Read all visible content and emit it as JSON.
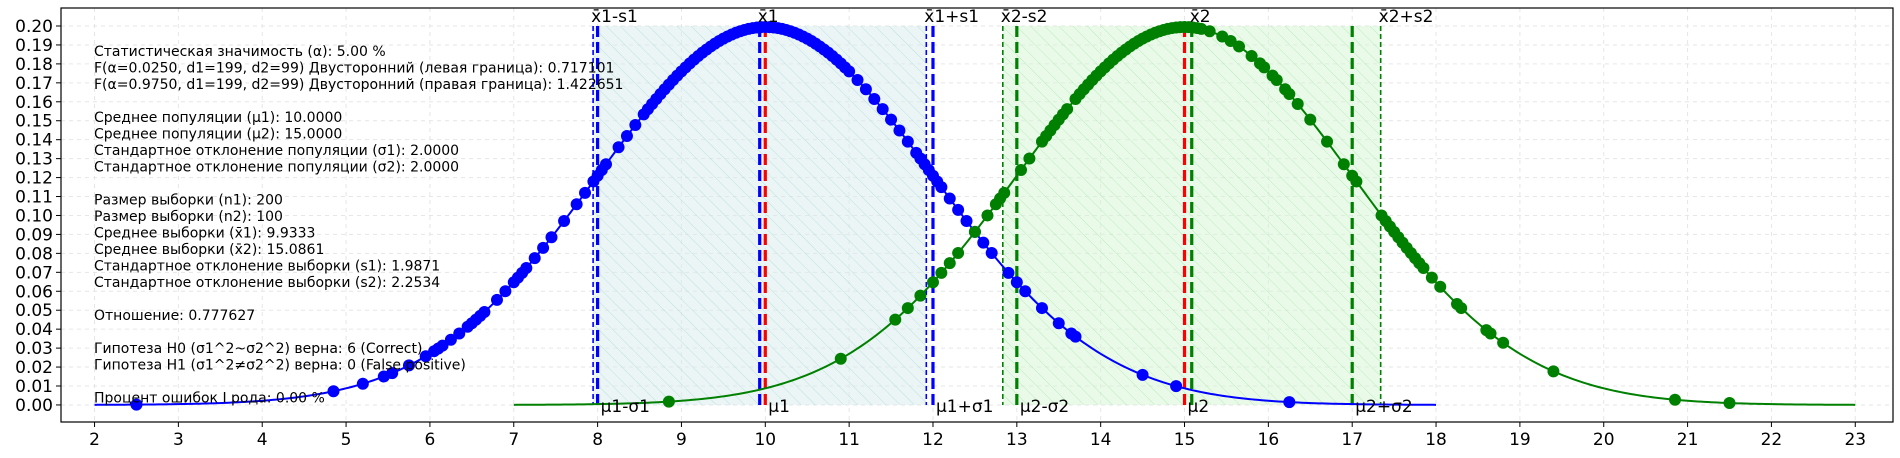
{
  "chart_data": {
    "type": "line",
    "xlim": [
      1.6,
      23.45
    ],
    "ylim": [
      -0.009,
      0.2095
    ],
    "grid": true,
    "xticks": [
      2,
      3,
      4,
      5,
      6,
      7,
      8,
      9,
      10,
      11,
      12,
      13,
      14,
      15,
      16,
      17,
      18,
      19,
      20,
      21,
      22,
      23
    ],
    "yticks": [
      0.0,
      0.01,
      0.02,
      0.03,
      0.04,
      0.05,
      0.06,
      0.07,
      0.08,
      0.09,
      0.1,
      0.11,
      0.12,
      0.13,
      0.14,
      0.15,
      0.16,
      0.17,
      0.18,
      0.19,
      0.2
    ],
    "colors": {
      "series1": "#0000ff",
      "series2": "#008000",
      "mean": "#ff0000",
      "band1": "#d8ecec",
      "band2": "#d4f5d4"
    },
    "series": [
      {
        "mu": 10.0,
        "sigma": 2.0,
        "x_range": [
          2,
          18
        ],
        "color": "#0000ff",
        "points": [
          2.5,
          4.85,
          5.2,
          5.45,
          5.55,
          5.75,
          5.95,
          6.05,
          6.1,
          6.15,
          6.25,
          6.35,
          6.45,
          6.5,
          6.55,
          6.6,
          6.65,
          6.8,
          6.9,
          7.0,
          7.05,
          7.1,
          7.15,
          7.25,
          7.35,
          7.45,
          7.6,
          7.75,
          7.85,
          7.95,
          8.0,
          8.05,
          8.1,
          8.25,
          8.35,
          8.45,
          8.55,
          8.6,
          8.65,
          8.7,
          8.75,
          8.8,
          8.85,
          8.9,
          8.95,
          9.0,
          9.05,
          9.1,
          9.15,
          9.2,
          9.25,
          9.3,
          9.35,
          9.4,
          9.45,
          9.5,
          9.55,
          9.6,
          9.65,
          9.7,
          9.75,
          9.8,
          9.85,
          9.9,
          9.95,
          10.0,
          10.05,
          10.1,
          10.15,
          10.2,
          10.25,
          10.3,
          10.35,
          10.4,
          10.45,
          10.5,
          10.55,
          10.6,
          10.65,
          10.7,
          10.75,
          10.8,
          10.85,
          10.9,
          10.95,
          11.0,
          11.1,
          11.2,
          11.3,
          11.4,
          11.5,
          11.6,
          11.7,
          11.8,
          11.85,
          11.9,
          11.95,
          12.0,
          12.05,
          12.1,
          12.2,
          12.3,
          12.4,
          12.5,
          12.6,
          12.7,
          12.9,
          13.0,
          13.1,
          13.3,
          13.5,
          13.65,
          13.7,
          14.5,
          14.9,
          16.25
        ]
      },
      {
        "mu": 15.0,
        "sigma": 2.0,
        "x_range": [
          7,
          23
        ],
        "color": "#008000",
        "points": [
          8.85,
          10.9,
          11.55,
          11.7,
          11.85,
          12.0,
          12.1,
          12.2,
          12.3,
          12.5,
          12.65,
          12.75,
          12.8,
          12.85,
          13.05,
          13.15,
          13.3,
          13.35,
          13.4,
          13.45,
          13.5,
          13.55,
          13.6,
          13.7,
          13.75,
          13.8,
          13.85,
          13.9,
          13.95,
          14.0,
          14.05,
          14.1,
          14.15,
          14.2,
          14.25,
          14.3,
          14.35,
          14.4,
          14.45,
          14.5,
          14.55,
          14.6,
          14.65,
          14.7,
          14.75,
          14.8,
          14.85,
          14.9,
          14.95,
          15.0,
          15.05,
          15.1,
          15.15,
          15.2,
          15.3,
          15.45,
          15.55,
          15.65,
          15.8,
          15.9,
          15.95,
          16.05,
          16.1,
          16.2,
          16.25,
          16.35,
          16.5,
          16.7,
          16.9,
          17.0,
          17.05,
          17.35,
          17.4,
          17.45,
          17.5,
          17.55,
          17.6,
          17.65,
          17.7,
          17.75,
          17.8,
          17.85,
          17.95,
          18.05,
          18.25,
          18.3,
          18.6,
          18.65,
          18.8,
          19.4,
          20.85,
          21.5
        ]
      }
    ],
    "vlines": [
      {
        "x": 7.9462,
        "color": "#0000ff",
        "style": "thin",
        "top_label": "x̄1-s1",
        "bottom_label": ""
      },
      {
        "x": 8.0,
        "color": "#0000ff",
        "style": "thick",
        "top_label": "",
        "bottom_label": "μ1-σ1"
      },
      {
        "x": 9.9333,
        "color": "#0000ff",
        "style": "thick",
        "top_label": "x̄1",
        "bottom_label": ""
      },
      {
        "x": 10.0,
        "color": "#ff0000",
        "style": "thick",
        "top_label": "",
        "bottom_label": "μ1"
      },
      {
        "x": 11.9204,
        "color": "#0000ff",
        "style": "thin",
        "top_label": "x̄1+s1",
        "bottom_label": ""
      },
      {
        "x": 12.0,
        "color": "#0000ff",
        "style": "thick",
        "top_label": "",
        "bottom_label": "μ1+σ1"
      },
      {
        "x": 12.8327,
        "color": "#008000",
        "style": "thin",
        "top_label": "x̄2-s2",
        "bottom_label": ""
      },
      {
        "x": 13.0,
        "color": "#008000",
        "style": "thick",
        "top_label": "",
        "bottom_label": "μ2-σ2"
      },
      {
        "x": 15.0,
        "color": "#ff0000",
        "style": "thick",
        "top_label": "",
        "bottom_label": "μ2"
      },
      {
        "x": 15.0861,
        "color": "#008000",
        "style": "thick",
        "top_label": "x̄2",
        "bottom_label": ""
      },
      {
        "x": 17.0,
        "color": "#008000",
        "style": "thick",
        "top_label": "",
        "bottom_label": "μ2+σ2"
      },
      {
        "x": 17.3395,
        "color": "#008000",
        "style": "thin",
        "top_label": "x̄2+s2",
        "bottom_label": ""
      }
    ],
    "bands": [
      {
        "x0": 7.9462,
        "x1": 11.9204,
        "color": "#d8ecec"
      },
      {
        "x0": 12.8327,
        "x1": 17.3395,
        "color": "#d4f5d4"
      }
    ],
    "annotations": [
      "Статистическая значимость (α): 5.00 %",
      "F(α=0.0250, d1=199, d2=99) Двусторонний (левая граница): 0.717101",
      "F(α=0.9750, d1=199, d2=99) Двусторонний (правая граница): 1.422651",
      "",
      "Среднее популяции (μ1): 10.0000",
      "Среднее популяции (μ2): 15.0000",
      "Стандартное отклонение популяции (σ1): 2.0000",
      "Стандартное отклонение популяции (σ2): 2.0000",
      "",
      "Размер выборки (n1): 200",
      "Размер выборки (n2): 100",
      "Среднее выборки (x̄1): 9.9333",
      "Среднее выборки (x̄2): 15.0861",
      "Стандартное отклонение выборки (s1): 1.9871",
      "Стандартное отклонение выборки (s2): 2.2534",
      "",
      "Отношение: 0.777627",
      "",
      "Гипотеза H0 (σ1^2~σ2^2) верна: 6 (Correct)",
      "Гипотеза H1 (σ1^2≠σ2^2) верна: 0 (False positive)",
      "",
      "Процент ошибок I рода: 0.00 %"
    ]
  }
}
